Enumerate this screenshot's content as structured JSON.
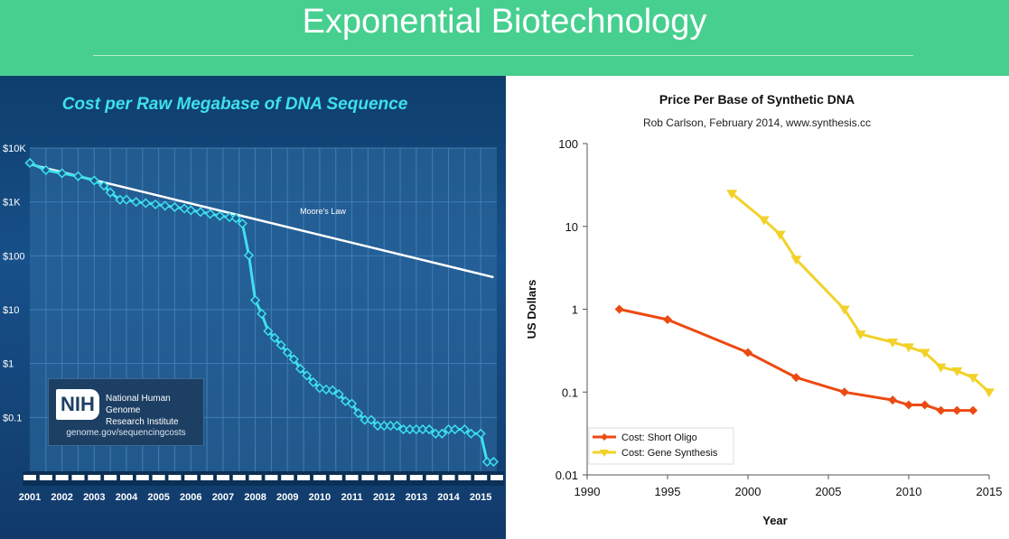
{
  "banner": {
    "title": "Exponential Biotechnology"
  },
  "nih_box": {
    "logo_text": "NIH",
    "institute_line1": "National Human Genome",
    "institute_line2": "Research Institute",
    "url": "genome.gov/sequencingcosts"
  },
  "colors": {
    "banner": "#47cf8f",
    "left_panel_bg": "#17508a",
    "cost_line": "#3fe0ee",
    "moores_law": "#ffffff",
    "short_oligo": "#ec4a12",
    "gene_synthesis": "#f2d22a"
  },
  "chart_data": [
    {
      "type": "line",
      "title": "Cost per Raw Megabase of DNA Sequence",
      "xlabel": "",
      "ylabel": "",
      "x_scale": "linear",
      "y_scale": "log",
      "xlim": [
        2001,
        2015.5
      ],
      "ylim": [
        0.01,
        10000
      ],
      "x_tick_labels": [
        "2001",
        "2002",
        "2003",
        "2004",
        "2005",
        "2006",
        "2007",
        "2008",
        "2009",
        "2010",
        "2011",
        "2012",
        "2013",
        "2014",
        "2015"
      ],
      "y_ticks": [
        0.1,
        1,
        10,
        100,
        1000,
        10000
      ],
      "y_tick_labels": [
        "$0.1",
        "$1",
        "$10",
        "$100",
        "$1K",
        "$10K"
      ],
      "grid": true,
      "annotations": [
        {
          "text": "Moore's Law"
        }
      ],
      "series": [
        {
          "values": [
            [
              2001.0,
              5300
            ],
            [
              2001.5,
              3900
            ],
            [
              2002.0,
              3400
            ],
            [
              2002.5,
              3000
            ],
            [
              2003.0,
              2500
            ],
            [
              2003.3,
              2000
            ],
            [
              2003.5,
              1500
            ],
            [
              2003.8,
              1100
            ],
            [
              2004.0,
              1100
            ],
            [
              2004.3,
              1000
            ],
            [
              2004.6,
              950
            ],
            [
              2004.9,
              900
            ],
            [
              2005.2,
              850
            ],
            [
              2005.5,
              800
            ],
            [
              2005.8,
              750
            ],
            [
              2006.0,
              700
            ],
            [
              2006.3,
              650
            ],
            [
              2006.6,
              600
            ],
            [
              2006.9,
              550
            ],
            [
              2007.2,
              520
            ],
            [
              2007.4,
              500
            ],
            [
              2007.6,
              397
            ],
            [
              2007.8,
              102
            ],
            [
              2008.0,
              15
            ],
            [
              2008.2,
              8.4
            ],
            [
              2008.4,
              4.0
            ],
            [
              2008.6,
              3.0
            ],
            [
              2008.8,
              2.2
            ],
            [
              2009.0,
              1.6
            ],
            [
              2009.2,
              1.2
            ],
            [
              2009.4,
              0.8
            ],
            [
              2009.6,
              0.6
            ],
            [
              2009.8,
              0.45
            ],
            [
              2010.0,
              0.35
            ],
            [
              2010.2,
              0.33
            ],
            [
              2010.4,
              0.32
            ],
            [
              2010.6,
              0.27
            ],
            [
              2010.8,
              0.2
            ],
            [
              2011.0,
              0.18
            ],
            [
              2011.2,
              0.12
            ],
            [
              2011.4,
              0.09
            ],
            [
              2011.6,
              0.09
            ],
            [
              2011.8,
              0.07
            ],
            [
              2012.0,
              0.07
            ],
            [
              2012.2,
              0.07
            ],
            [
              2012.4,
              0.07
            ],
            [
              2012.6,
              0.06
            ],
            [
              2012.8,
              0.06
            ],
            [
              2013.0,
              0.06
            ],
            [
              2013.2,
              0.06
            ],
            [
              2013.4,
              0.06
            ],
            [
              2013.6,
              0.05
            ],
            [
              2013.8,
              0.05
            ],
            [
              2014.0,
              0.06
            ],
            [
              2014.2,
              0.06
            ],
            [
              2014.5,
              0.06
            ],
            [
              2014.7,
              0.05
            ],
            [
              2015.0,
              0.05
            ],
            [
              2015.2,
              0.015
            ],
            [
              2015.4,
              0.015
            ]
          ]
        },
        {
          "name": "Moore's Law",
          "values": [
            [
              2001.0,
              5000
            ],
            [
              2015.4,
              40
            ]
          ]
        }
      ]
    },
    {
      "type": "line",
      "title": "Price Per Base of Synthetic DNA",
      "subtitle": "Rob Carlson, February 2014, www.synthesis.cc",
      "xlabel": "Year",
      "ylabel": "US Dollars",
      "x_scale": "linear",
      "y_scale": "log",
      "xlim": [
        1990,
        2015
      ],
      "ylim": [
        0.01,
        100
      ],
      "x_ticks": [
        1990,
        1995,
        2000,
        2005,
        2010,
        2015
      ],
      "y_ticks": [
        0.01,
        0.1,
        1,
        10,
        100
      ],
      "y_tick_labels": [
        "0.01",
        "0.1",
        "1",
        "10",
        "100"
      ],
      "grid": false,
      "legend_position": "bottom-left",
      "series": [
        {
          "name": "Cost: Short Oligo",
          "marker": "diamond",
          "values": [
            [
              1992,
              1.0
            ],
            [
              1995,
              0.75
            ],
            [
              2000,
              0.3
            ],
            [
              2003,
              0.15
            ],
            [
              2006,
              0.1
            ],
            [
              2009,
              0.08
            ],
            [
              2010,
              0.07
            ],
            [
              2011,
              0.07
            ],
            [
              2012,
              0.06
            ],
            [
              2013,
              0.06
            ],
            [
              2014,
              0.06
            ]
          ]
        },
        {
          "name": "Cost: Gene Synthesis",
          "marker": "triangle-down",
          "values": [
            [
              1999,
              25
            ],
            [
              2001,
              12
            ],
            [
              2002,
              8
            ],
            [
              2003,
              4
            ],
            [
              2006,
              1.0
            ],
            [
              2007,
              0.5
            ],
            [
              2009,
              0.4
            ],
            [
              2010,
              0.35
            ],
            [
              2011,
              0.3
            ],
            [
              2012,
              0.2
            ],
            [
              2013,
              0.18
            ],
            [
              2014,
              0.15
            ],
            [
              2015,
              0.1
            ]
          ]
        }
      ]
    }
  ]
}
